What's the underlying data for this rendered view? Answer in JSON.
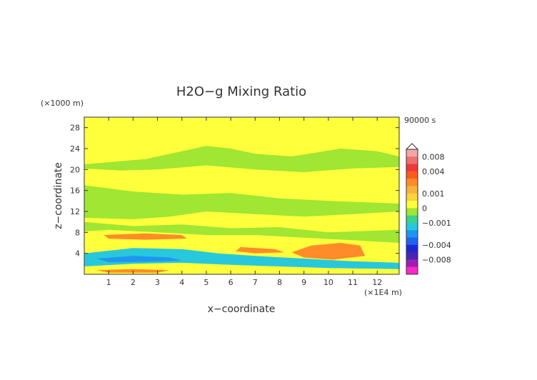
{
  "chart_data": {
    "type": "heatmap",
    "title": "H2O−g Mixing Ratio",
    "xlabel": "x−coordinate",
    "ylabel": "z−coordinate",
    "x_unit": "(×1E4 m)",
    "y_unit": "(×1000 m)",
    "time_label": "90000 s",
    "xlim": [
      0,
      12.9
    ],
    "ylim": [
      0,
      30
    ],
    "xticks": [
      1,
      2,
      3,
      4,
      5,
      6,
      7,
      8,
      9,
      10,
      11,
      12
    ],
    "yticks": [
      4,
      8,
      12,
      16,
      20,
      24,
      28
    ],
    "colorbar": {
      "labels": [
        "0.008",
        "0.004",
        "0.001",
        "0",
        "−0.001",
        "−0.004",
        "−0.008"
      ],
      "label_values": [
        0.008,
        0.004,
        0.001,
        0,
        -0.001,
        -0.004,
        -0.008
      ],
      "levels": [
        {
          "from": 0.008,
          "to": 0.01,
          "color": "#f4a6a6"
        },
        {
          "from": 0.006,
          "to": 0.008,
          "color": "#f07070"
        },
        {
          "from": 0.004,
          "to": 0.006,
          "color": "#ee3a3a"
        },
        {
          "from": 0.003,
          "to": 0.004,
          "color": "#ff5a1e"
        },
        {
          "from": 0.002,
          "to": 0.003,
          "color": "#ff8c28"
        },
        {
          "from": 0.001,
          "to": 0.002,
          "color": "#f7b43c"
        },
        {
          "from": 0.0005,
          "to": 0.001,
          "color": "#ffd23c"
        },
        {
          "from": 0,
          "to": 0.0005,
          "color": "#ffff3c"
        },
        {
          "from": -0.0005,
          "to": 0,
          "color": "#a0e632"
        },
        {
          "from": -0.001,
          "to": -0.0005,
          "color": "#3cd28c"
        },
        {
          "from": -0.002,
          "to": -0.001,
          "color": "#28c8dc"
        },
        {
          "from": -0.003,
          "to": -0.002,
          "color": "#1e96f0"
        },
        {
          "from": -0.004,
          "to": -0.003,
          "color": "#1e64f0"
        },
        {
          "from": -0.006,
          "to": -0.004,
          "color": "#1e28d2"
        },
        {
          "from": -0.008,
          "to": -0.006,
          "color": "#4628b4"
        },
        {
          "from": -0.01,
          "to": -0.008,
          "color": "#a01eb4"
        },
        {
          "from": -0.012,
          "to": -0.01,
          "color": "#ff28c8"
        }
      ]
    },
    "regions": [
      {
        "name": "yellow",
        "value": 0.0002,
        "color": "#ffff3c",
        "polygon": [
          [
            0,
            0
          ],
          [
            12.9,
            0
          ],
          [
            12.9,
            30
          ],
          [
            0,
            30
          ]
        ]
      },
      {
        "name": "green-band-upper",
        "value": -0.0003,
        "color": "#a0e632",
        "polygon": [
          [
            0,
            21
          ],
          [
            2.5,
            22
          ],
          [
            4,
            23.5
          ],
          [
            5,
            24.5
          ],
          [
            6,
            24
          ],
          [
            7,
            23
          ],
          [
            8.5,
            22.5
          ],
          [
            9.2,
            23
          ],
          [
            10.5,
            24
          ],
          [
            12,
            23.5
          ],
          [
            12.9,
            22.5
          ],
          [
            12.9,
            20.5
          ],
          [
            11,
            20.2
          ],
          [
            9,
            19.5
          ],
          [
            7,
            20
          ],
          [
            5,
            20.8
          ],
          [
            3,
            20
          ],
          [
            1.5,
            19.8
          ],
          [
            0,
            20.2
          ]
        ]
      },
      {
        "name": "green-band-mid",
        "value": -0.0003,
        "color": "#a0e632",
        "polygon": [
          [
            0,
            17
          ],
          [
            2,
            15.8
          ],
          [
            4,
            15.2
          ],
          [
            6,
            15.5
          ],
          [
            8,
            14.5
          ],
          [
            10,
            14
          ],
          [
            12.9,
            13.5
          ],
          [
            12.9,
            12
          ],
          [
            11,
            11.5
          ],
          [
            9,
            11
          ],
          [
            7,
            11.5
          ],
          [
            5,
            12
          ],
          [
            3.5,
            11
          ],
          [
            2,
            10.5
          ],
          [
            0,
            10.8
          ]
        ]
      },
      {
        "name": "green-band-lower",
        "value": -0.0003,
        "color": "#a0e632",
        "polygon": [
          [
            0,
            10
          ],
          [
            2,
            9.2
          ],
          [
            4,
            9.5
          ],
          [
            6,
            8.8
          ],
          [
            8,
            9
          ],
          [
            10,
            8
          ],
          [
            12.9,
            8.5
          ],
          [
            12.9,
            6
          ],
          [
            11,
            6.5
          ],
          [
            9,
            7
          ],
          [
            7,
            7.5
          ],
          [
            5,
            7.5
          ],
          [
            3,
            8
          ],
          [
            1,
            8.5
          ],
          [
            0,
            8.2
          ]
        ]
      },
      {
        "name": "orange-mid",
        "value": 0.002,
        "color": "#ff8c28",
        "polygon": [
          [
            0.8,
            7.5
          ],
          [
            2.5,
            7.8
          ],
          [
            4,
            7.5
          ],
          [
            4.2,
            6.8
          ],
          [
            2.5,
            6.6
          ],
          [
            1,
            6.8
          ]
        ]
      },
      {
        "name": "orange-right",
        "value": 0.0025,
        "color": "#ff8c28",
        "polygon": [
          [
            9.3,
            5.5
          ],
          [
            10.5,
            6
          ],
          [
            11.3,
            5.5
          ],
          [
            11.5,
            3.5
          ],
          [
            10.2,
            2.8
          ],
          [
            9,
            3.2
          ],
          [
            8.5,
            4.2
          ]
        ]
      },
      {
        "name": "orange-left-strip",
        "value": 0.002,
        "color": "#ff8c28",
        "polygon": [
          [
            6.4,
            5.2
          ],
          [
            7.8,
            4.8
          ],
          [
            8.2,
            4.2
          ],
          [
            7,
            4
          ],
          [
            6.2,
            4.4
          ]
        ]
      },
      {
        "name": "cyan-low",
        "value": -0.0015,
        "color": "#28c8dc",
        "polygon": [
          [
            0,
            4
          ],
          [
            2,
            5
          ],
          [
            4,
            4.8
          ],
          [
            5.5,
            4
          ],
          [
            7,
            3.5
          ],
          [
            9,
            3
          ],
          [
            11,
            2.5
          ],
          [
            12.9,
            2.2
          ],
          [
            12.9,
            1
          ],
          [
            10,
            1.2
          ],
          [
            8,
            1.5
          ],
          [
            6,
            1.8
          ],
          [
            4,
            2.2
          ],
          [
            2,
            2
          ],
          [
            0,
            1.5
          ]
        ]
      },
      {
        "name": "blue-low",
        "value": -0.0025,
        "color": "#1e96f0",
        "polygon": [
          [
            0.5,
            3
          ],
          [
            2,
            3.5
          ],
          [
            3.5,
            3.2
          ],
          [
            4,
            2.6
          ],
          [
            2.5,
            2.4
          ],
          [
            1,
            2.3
          ]
        ]
      },
      {
        "name": "yellow-floor",
        "value": 0.0003,
        "color": "#ffff3c",
        "polygon": [
          [
            0,
            1.2
          ],
          [
            3,
            1.5
          ],
          [
            6,
            1.3
          ],
          [
            9,
            1
          ],
          [
            12.9,
            0.9
          ],
          [
            12.9,
            0
          ],
          [
            0,
            0
          ]
        ]
      },
      {
        "name": "orange-floor",
        "value": 0.002,
        "color": "#ff8c28",
        "polygon": [
          [
            0.5,
            0.8
          ],
          [
            2,
            1
          ],
          [
            3.5,
            0.8
          ],
          [
            3,
            0.3
          ],
          [
            1,
            0.3
          ]
        ]
      }
    ]
  },
  "colors": {
    "frame": "#333333",
    "title": "#333333"
  }
}
